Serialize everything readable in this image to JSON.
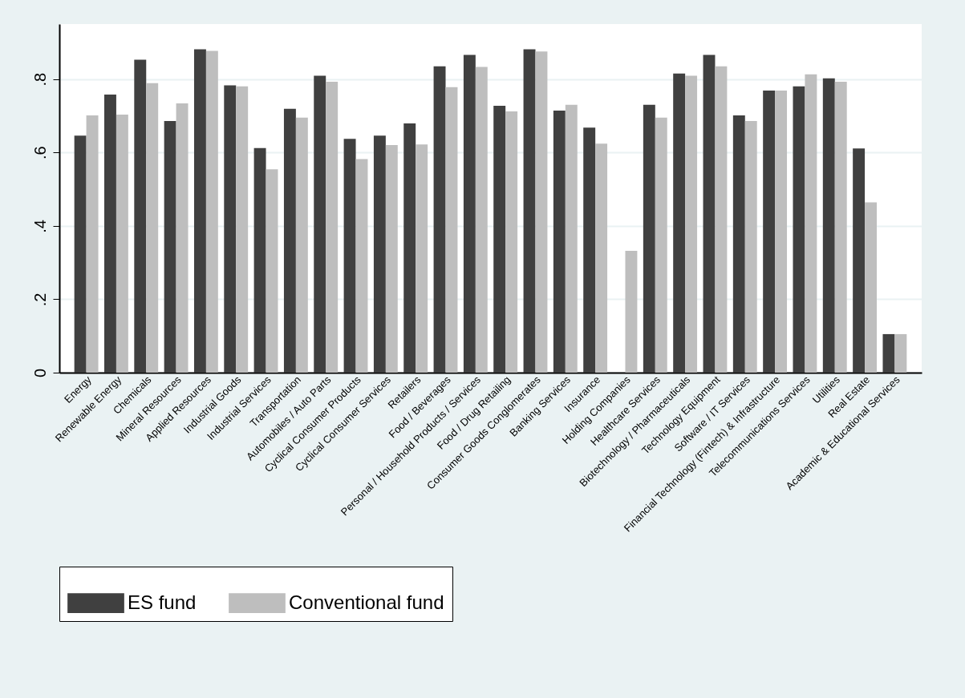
{
  "chart_data": {
    "type": "bar",
    "categories": [
      "Energy",
      "Renewable Energy",
      "Chemicals",
      "Mineral Resources",
      "Applied Resources",
      "Industrial Goods",
      "Industrial Services",
      "Transportation",
      "Automobiles / Auto Parts",
      "Cyclical Consumer Products",
      "Cyclical Consumer Services",
      "Retailers",
      "Food / Beverages",
      "Personal / Household Products / Services",
      "Food / Drug Retailing",
      "Consumer Goods Conglomerates",
      "Banking Services",
      "Insurance",
      "Holding Companies",
      "Healthcare Services",
      "Biotechnology / Pharmaceuticals",
      "Technology Equipment",
      "Software / IT Services",
      "Financial Technology (Fintech) & Infrastructure",
      "Telecommunications Services",
      "Utilities",
      "Real Estate",
      "Academic & Educational Services"
    ],
    "series": [
      {
        "name": "ES fund",
        "color": "#404040",
        "values": [
          0.646,
          0.758,
          0.853,
          0.686,
          0.881,
          0.783,
          0.612,
          0.719,
          0.809,
          0.637,
          0.646,
          0.679,
          0.835,
          0.866,
          0.727,
          0.881,
          0.714,
          0.668,
          null,
          0.73,
          0.815,
          0.866,
          0.701,
          0.769,
          0.78,
          0.802,
          0.611,
          0.105
        ]
      },
      {
        "name": "Conventional fund",
        "color": "#bebebe",
        "values": [
          0.701,
          0.703,
          0.789,
          0.734,
          0.877,
          0.78,
          0.554,
          0.695,
          0.793,
          0.582,
          0.62,
          0.622,
          0.778,
          0.833,
          0.712,
          0.875,
          0.73,
          0.624,
          0.332,
          0.695,
          0.809,
          0.835,
          0.686,
          0.769,
          0.813,
          0.793,
          0.464,
          0.105
        ]
      }
    ],
    "ylim": [
      0,
      0.95
    ],
    "yticks": [
      0,
      {
        "value": 0.2,
        "label": ".2"
      },
      {
        "value": 0.4,
        "label": ".4"
      },
      {
        "value": 0.6,
        "label": ".6"
      },
      {
        "value": 0.8,
        "label": ".8"
      }
    ],
    "grid": "y",
    "legend": "bottom"
  }
}
